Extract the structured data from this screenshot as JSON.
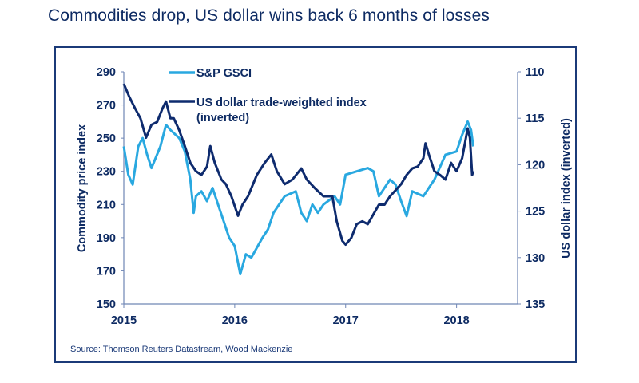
{
  "title": "Commodities drop, US dollar wins back 6 months of losses",
  "source": "Source: Thomson Reuters Datastream, Wood Mackenzie",
  "chart_data": {
    "type": "line",
    "title": "Commodities drop, US dollar wins back 6 months of losses",
    "xlabel": "",
    "ylabel": "Commodity price index",
    "y2label": "US dollar index (inverted)",
    "xlim": [
      2015,
      2018.55
    ],
    "ylim": [
      150,
      290
    ],
    "y2lim": [
      135,
      110
    ],
    "y2_inverted": true,
    "grid": false,
    "legend": "top-center",
    "x_ticks": [
      "2015",
      "2016",
      "2017",
      "2018"
    ],
    "y_ticks": [
      "150",
      "170",
      "190",
      "210",
      "230",
      "250",
      "270",
      "290"
    ],
    "y2_ticks": [
      "110",
      "115",
      "120",
      "125",
      "130",
      "135"
    ],
    "series": [
      {
        "name": "S&P GSCI",
        "axis": "left",
        "color": "#29a8e0",
        "x": [
          2015.0,
          2015.04,
          2015.08,
          2015.13,
          2015.17,
          2015.21,
          2015.25,
          2015.33,
          2015.38,
          2015.42,
          2015.5,
          2015.55,
          2015.6,
          2015.63,
          2015.65,
          2015.7,
          2015.75,
          2015.8,
          2015.85,
          2015.9,
          2015.95,
          2016.0,
          2016.05,
          2016.1,
          2016.15,
          2016.25,
          2016.3,
          2016.35,
          2016.45,
          2016.55,
          2016.6,
          2016.65,
          2016.7,
          2016.75,
          2016.8,
          2016.9,
          2016.95,
          2017.0,
          2017.1,
          2017.2,
          2017.25,
          2017.3,
          2017.4,
          2017.45,
          2017.5,
          2017.55,
          2017.6,
          2017.7,
          2017.8,
          2017.9,
          2018.0,
          2018.05,
          2018.1,
          2018.13,
          2018.15
        ],
        "values": [
          245,
          228,
          222,
          245,
          250,
          240,
          232,
          245,
          258,
          255,
          250,
          242,
          225,
          205,
          215,
          218,
          212,
          220,
          210,
          200,
          190,
          185,
          168,
          180,
          178,
          190,
          195,
          205,
          215,
          218,
          205,
          200,
          210,
          205,
          210,
          215,
          210,
          228,
          230,
          232,
          230,
          215,
          225,
          222,
          212,
          203,
          218,
          215,
          225,
          240,
          242,
          252,
          260,
          255,
          245
        ]
      },
      {
        "name": "US dollar trade-weighted index (inverted)",
        "axis": "right",
        "color": "#0e2b6e",
        "x": [
          2015.0,
          2015.05,
          2015.1,
          2015.15,
          2015.2,
          2015.25,
          2015.3,
          2015.35,
          2015.38,
          2015.42,
          2015.45,
          2015.5,
          2015.55,
          2015.6,
          2015.65,
          2015.7,
          2015.75,
          2015.78,
          2015.82,
          2015.88,
          2015.92,
          2015.97,
          2016.03,
          2016.07,
          2016.12,
          2016.2,
          2016.27,
          2016.33,
          2016.38,
          2016.45,
          2016.52,
          2016.6,
          2016.65,
          2016.72,
          2016.8,
          2016.88,
          2016.92,
          2016.97,
          2017.0,
          2017.05,
          2017.1,
          2017.15,
          2017.2,
          2017.3,
          2017.35,
          2017.4,
          2017.5,
          2017.55,
          2017.6,
          2017.65,
          2017.7,
          2017.72,
          2017.75,
          2017.8,
          2017.85,
          2017.9,
          2017.95,
          2018.0,
          2018.05,
          2018.1,
          2018.12,
          2018.14,
          2018.15
        ],
        "values": [
          111.3,
          112.7,
          113.9,
          115.0,
          117.1,
          115.7,
          115.4,
          113.9,
          113.2,
          115.0,
          115.0,
          116.3,
          118.0,
          119.8,
          120.7,
          121.1,
          120.2,
          118.0,
          119.8,
          121.6,
          122.1,
          123.4,
          125.5,
          124.3,
          123.4,
          121.1,
          119.8,
          118.9,
          120.7,
          122.1,
          121.6,
          120.4,
          121.6,
          122.5,
          123.4,
          123.4,
          126.1,
          128.2,
          128.6,
          127.9,
          126.4,
          126.1,
          126.4,
          124.3,
          124.3,
          123.4,
          122.1,
          121.1,
          120.4,
          120.2,
          119.3,
          117.7,
          118.9,
          120.7,
          121.1,
          121.6,
          119.8,
          120.7,
          119.3,
          116.1,
          117.1,
          121.1,
          120.7
        ]
      }
    ]
  }
}
